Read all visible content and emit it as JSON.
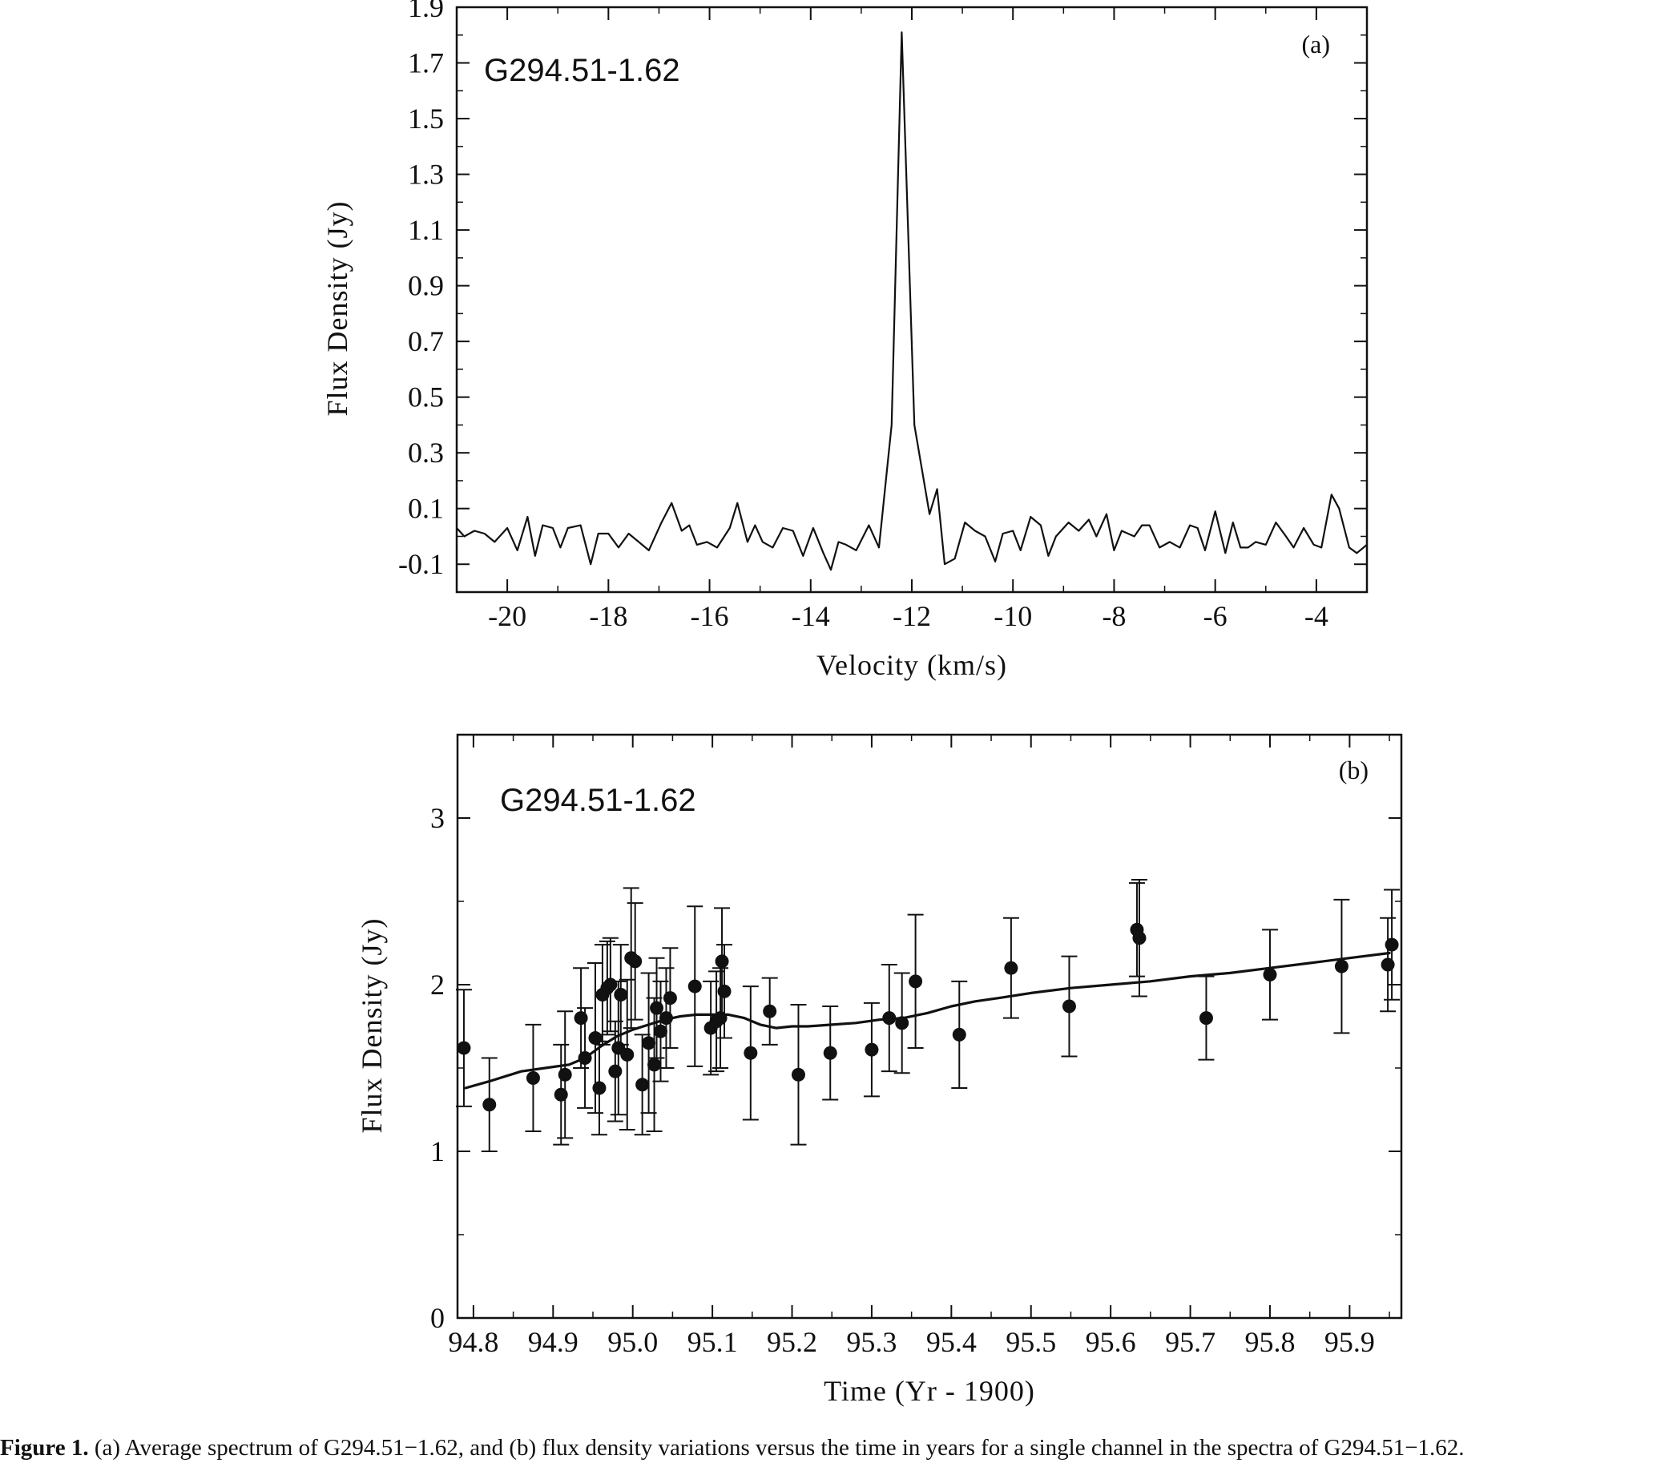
{
  "figure": {
    "caption_label": "Figure 1.",
    "caption_text": " (a) Average spectrum of G294.51−1.62, and (b) flux density variations versus the time in years for a single channel in the spectra of G294.51−1.62."
  },
  "chart_data": [
    {
      "type": "line",
      "panel_tag": "(a)",
      "source_label": "G294.51-1.62",
      "xlabel": "Velocity (km/s)",
      "ylabel": "Flux Density (Jy)",
      "xlim": [
        -21.0,
        -3.0
      ],
      "ylim": [
        -0.2,
        1.9
      ],
      "xticks": [
        -20,
        -18,
        -16,
        -14,
        -12,
        -10,
        -8,
        -6,
        -4
      ],
      "xtick_labels": [
        "-20",
        "-18",
        "-16",
        "-14",
        "-12",
        "-10",
        "-8",
        "-6",
        "-4"
      ],
      "yticks": [
        -0.1,
        0.1,
        0.3,
        0.5,
        0.7,
        0.9,
        1.1,
        1.3,
        1.5,
        1.7,
        1.9
      ],
      "ytick_labels": [
        "-0.1",
        "0.1",
        "0.3",
        "0.5",
        "0.7",
        "0.9",
        "1.1",
        "1.3",
        "1.5",
        "1.7",
        "1.9"
      ],
      "series": [
        {
          "x": [
            -21.0,
            -20.85,
            -20.65,
            -20.45,
            -20.25,
            -20.0,
            -19.8,
            -19.6,
            -19.45,
            -19.3,
            -19.1,
            -18.95,
            -18.8,
            -18.55,
            -18.35,
            -18.2,
            -18.0,
            -17.8,
            -17.6,
            -17.4,
            -17.2,
            -16.95,
            -16.75,
            -16.55,
            -16.4,
            -16.25,
            -16.05,
            -15.85,
            -15.6,
            -15.45,
            -15.25,
            -15.1,
            -14.95,
            -14.75,
            -14.55,
            -14.35,
            -14.15,
            -13.95,
            -13.75,
            -13.6,
            -13.45,
            -13.3,
            -13.1,
            -12.85,
            -12.65,
            -12.4,
            -12.2,
            -11.95,
            -11.65,
            -11.5,
            -11.35,
            -11.15,
            -10.95,
            -10.75,
            -10.55,
            -10.35,
            -10.2,
            -10.0,
            -9.85,
            -9.65,
            -9.45,
            -9.3,
            -9.15,
            -8.9,
            -8.7,
            -8.5,
            -8.35,
            -8.15,
            -8.0,
            -7.85,
            -7.6,
            -7.45,
            -7.3,
            -7.1,
            -6.9,
            -6.7,
            -6.5,
            -6.35,
            -6.2,
            -6.0,
            -5.8,
            -5.65,
            -5.5,
            -5.35,
            -5.2,
            -5.0,
            -4.8,
            -4.6,
            -4.45,
            -4.25,
            -4.05,
            -3.9,
            -3.7,
            -3.55,
            -3.35,
            -3.2,
            -3.0
          ],
          "y": [
            0.03,
            0.0,
            0.02,
            0.01,
            -0.02,
            0.03,
            -0.05,
            0.07,
            -0.07,
            0.04,
            0.03,
            -0.04,
            0.03,
            0.04,
            -0.1,
            0.01,
            0.01,
            -0.04,
            0.01,
            -0.02,
            -0.05,
            0.05,
            0.12,
            0.02,
            0.04,
            -0.03,
            -0.02,
            -0.04,
            0.03,
            0.12,
            -0.02,
            0.04,
            -0.02,
            -0.04,
            0.03,
            0.02,
            -0.07,
            0.03,
            -0.06,
            -0.12,
            -0.02,
            -0.03,
            -0.05,
            0.04,
            -0.04,
            0.4,
            1.81,
            0.4,
            0.08,
            0.17,
            -0.1,
            -0.08,
            0.05,
            0.02,
            0.0,
            -0.09,
            0.01,
            0.02,
            -0.05,
            0.07,
            0.04,
            -0.07,
            0.0,
            0.05,
            0.02,
            0.06,
            0.0,
            0.08,
            -0.05,
            0.02,
            0.0,
            0.04,
            0.04,
            -0.04,
            -0.02,
            -0.04,
            0.04,
            0.03,
            -0.05,
            0.09,
            -0.06,
            0.05,
            -0.04,
            -0.04,
            -0.02,
            -0.03,
            0.05,
            0.0,
            -0.04,
            0.03,
            -0.03,
            -0.04,
            0.15,
            0.1,
            -0.04,
            -0.06,
            -0.03
          ]
        }
      ]
    },
    {
      "type": "scatter",
      "panel_tag": "(b)",
      "source_label": "G294.51-1.62",
      "xlabel": "Time (Yr - 1900)",
      "ylabel": "Flux Density (Jy)",
      "xlim": [
        94.78,
        95.965
      ],
      "ylim": [
        0,
        3.5
      ],
      "xticks": [
        94.8,
        94.9,
        95.0,
        95.1,
        95.2,
        95.3,
        95.4,
        95.5,
        95.6,
        95.7,
        95.8,
        95.9
      ],
      "xtick_labels": [
        "94.8",
        "94.9",
        "95.0",
        "95.1",
        "95.2",
        "95.3",
        "95.4",
        "95.5",
        "95.6",
        "95.7",
        "95.8",
        "95.9"
      ],
      "yticks": [
        0,
        1,
        2,
        3
      ],
      "ytick_labels": [
        "0",
        "1",
        "2",
        "3"
      ],
      "series": [
        {
          "kind": "points-with-errorbars",
          "x": [
            94.788,
            94.82,
            94.875,
            94.91,
            94.915,
            94.935,
            94.94,
            94.953,
            94.958,
            94.962,
            94.968,
            94.972,
            94.978,
            94.982,
            94.985,
            94.993,
            94.998,
            95.003,
            95.012,
            95.02,
            95.027,
            95.03,
            95.035,
            95.042,
            95.047,
            95.078,
            95.098,
            95.105,
            95.11,
            95.112,
            95.115,
            95.148,
            95.172,
            95.208,
            95.248,
            95.3,
            95.322,
            95.338,
            95.355,
            95.41,
            95.475,
            95.548,
            95.633,
            95.636,
            95.72,
            95.8,
            95.89,
            95.948,
            95.953
          ],
          "y": [
            1.62,
            1.28,
            1.44,
            1.34,
            1.46,
            1.8,
            1.56,
            1.68,
            1.38,
            1.94,
            1.98,
            2.0,
            1.48,
            1.62,
            1.94,
            1.58,
            2.16,
            2.14,
            1.4,
            1.65,
            1.52,
            1.86,
            1.72,
            1.8,
            1.92,
            1.99,
            1.74,
            1.78,
            1.8,
            2.14,
            1.96,
            1.59,
            1.84,
            1.46,
            1.59,
            1.61,
            1.8,
            1.77,
            2.02,
            1.7,
            2.1,
            1.87,
            2.33,
            2.28,
            1.8,
            2.06,
            2.11,
            2.12,
            2.24
          ],
          "err": [
            0.35,
            0.28,
            0.32,
            0.3,
            0.38,
            0.3,
            0.3,
            0.45,
            0.28,
            0.3,
            0.28,
            0.28,
            0.3,
            0.4,
            0.3,
            0.45,
            0.42,
            0.35,
            0.3,
            0.42,
            0.4,
            0.3,
            0.3,
            0.3,
            0.3,
            0.48,
            0.28,
            0.3,
            0.3,
            0.32,
            0.28,
            0.4,
            0.2,
            0.42,
            0.28,
            0.28,
            0.32,
            0.3,
            0.4,
            0.32,
            0.3,
            0.3,
            0.28,
            0.35,
            0.25,
            0.27,
            0.4,
            0.28,
            0.33
          ]
        },
        {
          "kind": "smooth-fit",
          "x": [
            94.79,
            94.82,
            94.86,
            94.89,
            94.92,
            94.94,
            94.96,
            94.98,
            95.0,
            95.02,
            95.04,
            95.06,
            95.08,
            95.1,
            95.12,
            95.14,
            95.16,
            95.18,
            95.2,
            95.22,
            95.25,
            95.28,
            95.31,
            95.34,
            95.37,
            95.4,
            95.43,
            95.46,
            95.5,
            95.55,
            95.6,
            95.65,
            95.7,
            95.75,
            95.8,
            95.85,
            95.9,
            95.95
          ],
          "y": [
            1.38,
            1.42,
            1.48,
            1.5,
            1.52,
            1.56,
            1.63,
            1.69,
            1.73,
            1.76,
            1.79,
            1.81,
            1.82,
            1.82,
            1.82,
            1.8,
            1.76,
            1.74,
            1.75,
            1.75,
            1.76,
            1.77,
            1.79,
            1.8,
            1.83,
            1.87,
            1.9,
            1.92,
            1.95,
            1.98,
            2.0,
            2.02,
            2.05,
            2.07,
            2.1,
            2.13,
            2.16,
            2.19
          ]
        }
      ]
    }
  ]
}
